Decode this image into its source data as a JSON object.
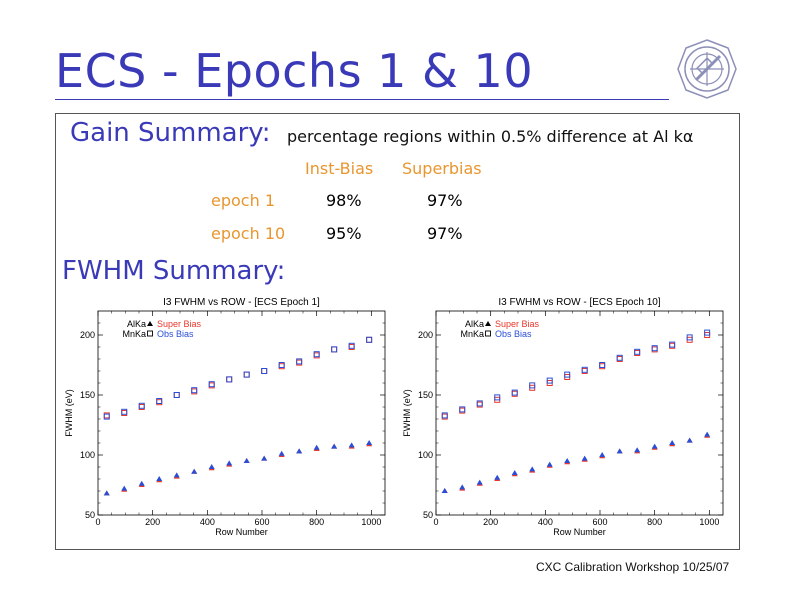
{
  "slide": {
    "title": "ECS - Epochs 1 & 10",
    "footer": "CXC Calibration Workshop 10/25/07",
    "logo_icon": "chandra-logo-icon"
  },
  "gain": {
    "heading": "Gain Summary:",
    "description": "percentage regions within 0.5% difference at Al kα",
    "columns": [
      "Inst-Bias",
      "Superbias"
    ],
    "rows": [
      {
        "label": "epoch 1",
        "values": [
          "98%",
          "97%"
        ]
      },
      {
        "label": "epoch 10",
        "values": [
          "95%",
          "97%"
        ]
      }
    ]
  },
  "fwhm": {
    "heading": "FWHM Summary:"
  },
  "colors": {
    "super_bias": "#e8362a",
    "obs_bias": "#2a4fd6",
    "accent": "#3a3ab8",
    "orange": "#e8962e"
  },
  "chart_data": [
    {
      "type": "scatter",
      "title": "I3 FWHM vs ROW - [ECS Epoch 1]",
      "xlabel": "Row Number",
      "ylabel": "FWHM (eV)",
      "xlim": [
        0,
        1050
      ],
      "ylim": [
        50,
        220
      ],
      "xticks": [
        0,
        200,
        400,
        600,
        800,
        1000
      ],
      "yticks": [
        50,
        100,
        150,
        200
      ],
      "legend": {
        "markers": [
          "AlKa",
          "MnKa"
        ],
        "bias": [
          "Super Bias",
          "Obs Bias"
        ]
      },
      "x": [
        32,
        96,
        160,
        224,
        288,
        352,
        416,
        480,
        544,
        608,
        672,
        736,
        800,
        864,
        928,
        992
      ],
      "series": [
        {
          "name": "AlKa Super Bias",
          "marker": "triangle",
          "color": "#e8362a",
          "values": [
            68,
            71,
            75,
            79,
            82,
            86,
            89,
            92,
            95,
            97,
            100,
            103,
            105,
            107,
            107,
            109
          ]
        },
        {
          "name": "AlKa Obs Bias",
          "marker": "triangle",
          "color": "#2a4fd6",
          "values": [
            68,
            72,
            76,
            80,
            83,
            86,
            90,
            93,
            95,
            97,
            101,
            103,
            106,
            107,
            108,
            110
          ]
        },
        {
          "name": "MnKa Super Bias",
          "marker": "square",
          "color": "#e8362a",
          "values": [
            133,
            135,
            140,
            144,
            150,
            153,
            158,
            163,
            167,
            170,
            174,
            177,
            183,
            188,
            190,
            196
          ]
        },
        {
          "name": "MnKa Obs Bias",
          "marker": "square",
          "color": "#2a4fd6",
          "values": [
            132,
            136,
            141,
            145,
            150,
            154,
            159,
            163,
            167,
            170,
            175,
            178,
            184,
            188,
            191,
            196
          ]
        }
      ]
    },
    {
      "type": "scatter",
      "title": "I3 FWHM vs ROW - [ECS Epoch 10]",
      "xlabel": "Row Number",
      "ylabel": "FWHM (eV)",
      "xlim": [
        0,
        1050
      ],
      "ylim": [
        50,
        220
      ],
      "xticks": [
        0,
        200,
        400,
        600,
        800,
        1000
      ],
      "yticks": [
        50,
        100,
        150,
        200
      ],
      "legend": {
        "markers": [
          "AlKa",
          "MnKa"
        ],
        "bias": [
          "Super Bias",
          "Obs Bias"
        ]
      },
      "x": [
        32,
        96,
        160,
        224,
        288,
        352,
        416,
        480,
        544,
        608,
        672,
        736,
        800,
        864,
        928,
        992
      ],
      "series": [
        {
          "name": "AlKa Super Bias",
          "marker": "triangle",
          "color": "#e8362a",
          "values": [
            70,
            72,
            76,
            80,
            84,
            87,
            91,
            94,
            96,
            99,
            103,
            103,
            106,
            109,
            112,
            116
          ]
        },
        {
          "name": "AlKa Obs Bias",
          "marker": "triangle",
          "color": "#2a4fd6",
          "values": [
            70,
            73,
            77,
            81,
            85,
            88,
            92,
            95,
            97,
            100,
            103,
            104,
            107,
            110,
            112,
            117
          ]
        },
        {
          "name": "MnKa Super Bias",
          "marker": "square",
          "color": "#e8362a",
          "values": [
            132,
            137,
            142,
            146,
            151,
            156,
            160,
            165,
            170,
            174,
            180,
            185,
            188,
            191,
            196,
            200
          ]
        },
        {
          "name": "MnKa Obs Bias",
          "marker": "square",
          "color": "#2a4fd6",
          "values": [
            133,
            138,
            143,
            148,
            152,
            158,
            162,
            167,
            171,
            175,
            181,
            186,
            189,
            192,
            198,
            202
          ]
        }
      ]
    }
  ]
}
